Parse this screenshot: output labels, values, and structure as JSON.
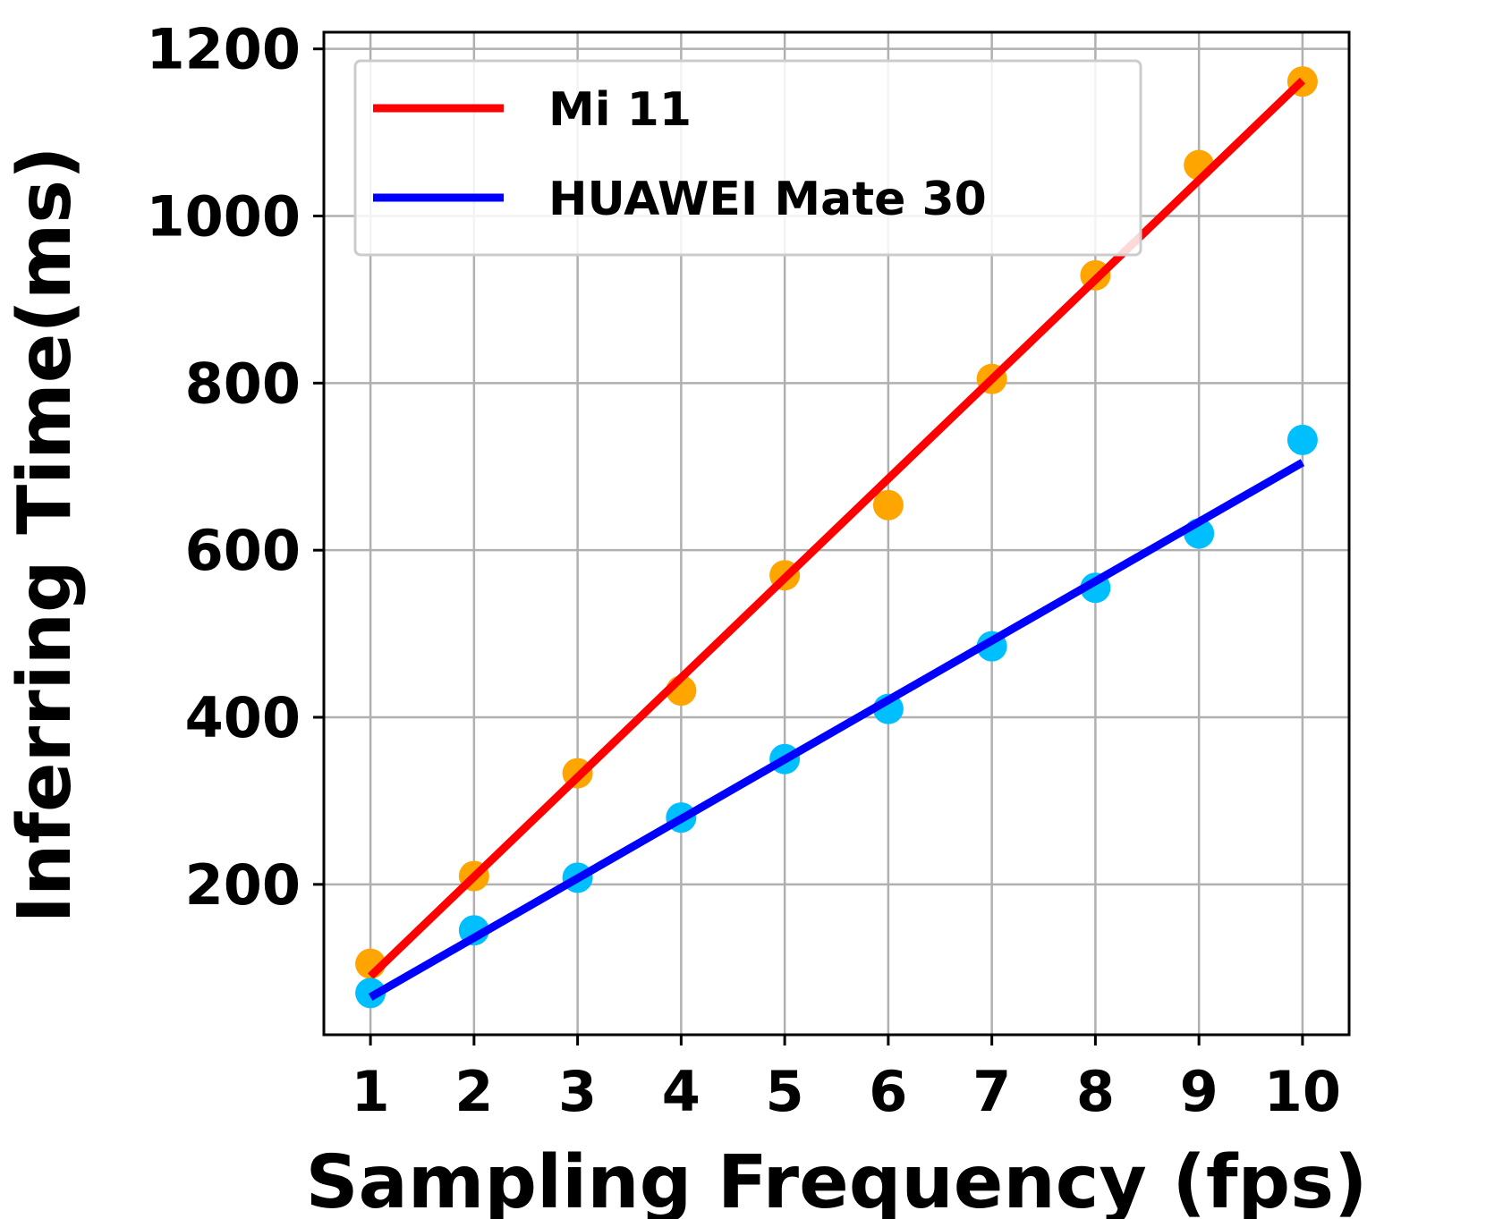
{
  "chart_data": {
    "type": "scatter",
    "title": "",
    "xlabel": "Sampling Frequency (fps)",
    "ylabel": "Inferring Time(ms)",
    "x": [
      1,
      2,
      3,
      4,
      5,
      6,
      7,
      8,
      9,
      10
    ],
    "xlim": [
      0.55,
      10.45
    ],
    "ylim": [
      20,
      1220
    ],
    "xticks": [
      "1",
      "2",
      "3",
      "4",
      "5",
      "6",
      "7",
      "8",
      "9",
      "10"
    ],
    "yticks": [
      "200",
      "400",
      "600",
      "800",
      "1000",
      "1200"
    ],
    "grid": true,
    "legend_position": "top-left",
    "series": [
      {
        "name": "Mi 11",
        "line_color": "#ff0000",
        "point_color": "#ffa500",
        "points": [
          105,
          210,
          333,
          432,
          570,
          654,
          805,
          929,
          1061,
          1161
        ],
        "fit": [
          90,
          1162
        ]
      },
      {
        "name": "HUAWEI Mate 30",
        "line_color": "#0000ff",
        "point_color": "#00bfff",
        "points": [
          70,
          145,
          208,
          280,
          350,
          410,
          485,
          555,
          620,
          732
        ],
        "fit": [
          65,
          705
        ]
      }
    ]
  }
}
